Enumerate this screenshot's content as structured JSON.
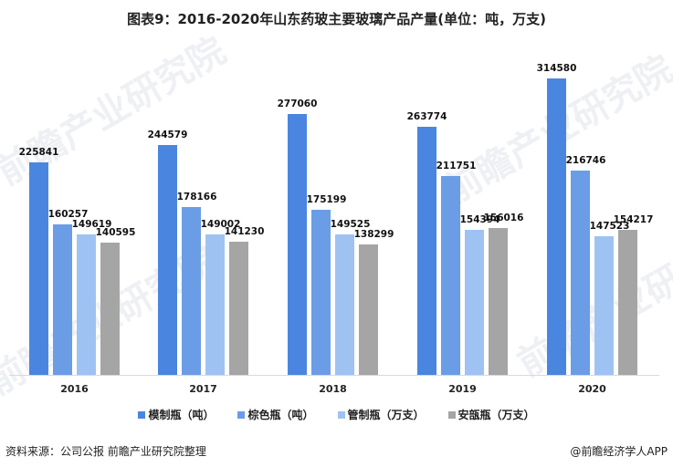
{
  "title": "图表9：2016-2020年山东药玻主要玻璃产品产量(单位：吨，万支)",
  "source": "资料来源：公司公报 前瞻产业研究院整理",
  "credit": "@前瞻经济学人APP",
  "watermark": "前瞻产业研究院",
  "chart_data": {
    "type": "bar",
    "title": "图表9：2016-2020年山东药玻主要玻璃产品产量(单位：吨，万支)",
    "xlabel": "",
    "ylabel": "",
    "categories": [
      "2016",
      "2017",
      "2018",
      "2019",
      "2020"
    ],
    "series": [
      {
        "name": "模制瓶（吨）",
        "color": "#4a86e0",
        "values": [
          225841,
          244579,
          277060,
          263774,
          314580
        ]
      },
      {
        "name": "棕色瓶（吨）",
        "color": "#6a9de6",
        "values": [
          160257,
          178166,
          175199,
          211751,
          216746
        ]
      },
      {
        "name": "管制瓶（万支）",
        "color": "#9ec3f3",
        "values": [
          149619,
          149002,
          149525,
          154394,
          147523
        ]
      },
      {
        "name": "安瓿瓶（万支）",
        "color": "#a5a5a5",
        "values": [
          140595,
          141230,
          138299,
          156016,
          154217
        ]
      }
    ],
    "ylim": [
      0,
      340000
    ],
    "grid": false,
    "legend_position": "bottom",
    "data_labels": true
  }
}
